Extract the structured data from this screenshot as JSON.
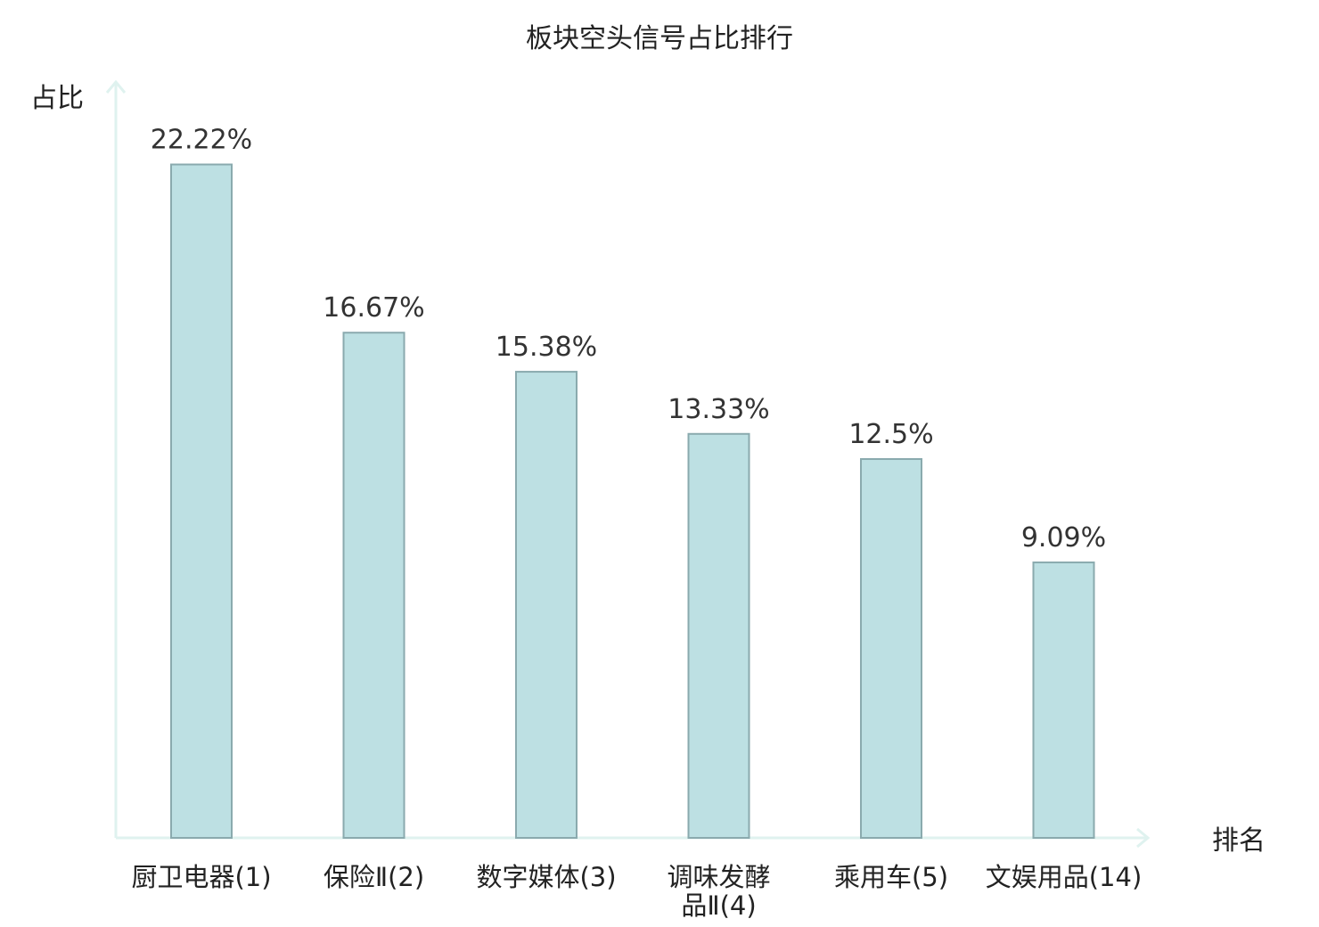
{
  "chart_data": {
    "type": "bar",
    "title": "板块空头信号占比排行",
    "xlabel": "排名",
    "ylabel": "占比",
    "categories": [
      {
        "lines": [
          "厨卫电器(1)"
        ],
        "highlight": false
      },
      {
        "lines": [
          "保险Ⅱ(2)"
        ],
        "highlight": false
      },
      {
        "lines": [
          "数字媒体(3)"
        ],
        "highlight": false
      },
      {
        "lines": [
          "调味发酵",
          "品Ⅱ(4)"
        ],
        "highlight": false
      },
      {
        "lines": [
          "乘用车(5)"
        ],
        "highlight": false
      },
      {
        "lines": [
          "文娱用品(14)"
        ],
        "highlight": true
      }
    ],
    "values": [
      22.22,
      16.67,
      15.38,
      13.33,
      12.5,
      9.09
    ],
    "value_labels": [
      "22.22%",
      "16.67%",
      "15.38%",
      "13.33%",
      "12.5%",
      "9.09%"
    ],
    "ylim": [
      0,
      25
    ],
    "grid": false,
    "colors": {
      "bar_fill": "#bde0e3",
      "bar_stroke": "#8aaaae",
      "axis": "#dff2ef",
      "highlight_label": "#e02020",
      "text": "#222222"
    }
  }
}
